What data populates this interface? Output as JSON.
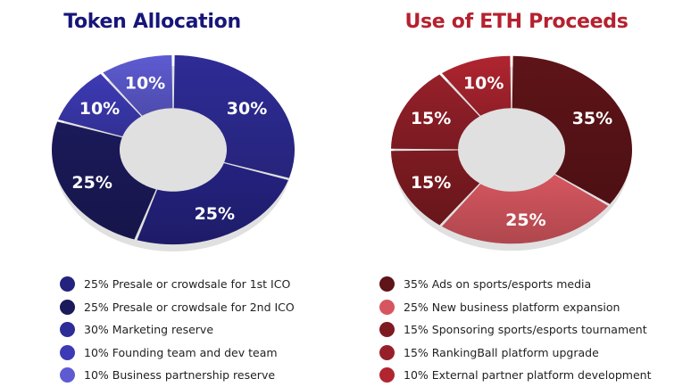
{
  "chart_data": [
    {
      "type": "pie",
      "title": "Token Allocation",
      "title_color": "#16167a",
      "slices": [
        {
          "value": 30,
          "label": "30%",
          "color": "#2e2c96",
          "legend": "30% Marketing reserve"
        },
        {
          "value": 25,
          "label": "25%",
          "color": "#24227f",
          "legend": "25% Presale or crowdsale for 1st ICO"
        },
        {
          "value": 25,
          "label": "25%",
          "color": "#1b1a5a",
          "legend": "25% Presale or crowdsale for 2nd ICO"
        },
        {
          "value": 10,
          "label": "10%",
          "color": "#3d3ab5",
          "legend": "10% Founding team and dev team"
        },
        {
          "value": 10,
          "label": "10%",
          "color": "#5e5bd2",
          "legend": "10% Business partnership reserve"
        }
      ],
      "legend_order": [
        1,
        2,
        0,
        3,
        4
      ]
    },
    {
      "type": "pie",
      "title": "Use of ETH Proceeds",
      "title_color": "#b5212f",
      "slices": [
        {
          "value": 35,
          "label": "35%",
          "color": "#5e1418",
          "legend": "35% Ads on sports/esports media"
        },
        {
          "value": 25,
          "label": "25%",
          "color": "#d6565f",
          "legend": "25% New business platform expansion"
        },
        {
          "value": 15,
          "label": "15%",
          "color": "#7d1b21",
          "legend": "15% Sponsoring sports/esports tournament"
        },
        {
          "value": 15,
          "label": "15%",
          "color": "#96202a",
          "legend": "15% RankingBall platform upgrade"
        },
        {
          "value": 10,
          "label": "10%",
          "color": "#b02530",
          "legend": "10% External partner platform development"
        }
      ],
      "legend_order": [
        0,
        1,
        2,
        3,
        4
      ]
    }
  ]
}
